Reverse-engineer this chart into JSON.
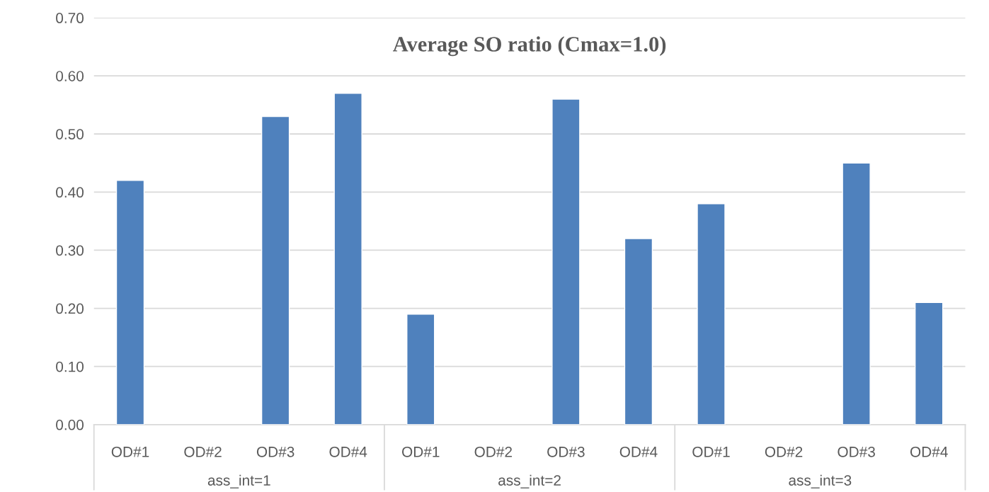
{
  "chart_data": {
    "type": "bar",
    "title": "Average SO ratio (Cmax=1.0)",
    "categories": [
      "OD#1",
      "OD#2",
      "OD#3",
      "OD#4",
      "OD#1",
      "OD#2",
      "OD#3",
      "OD#4",
      "OD#1",
      "OD#2",
      "OD#3",
      "OD#4"
    ],
    "values": [
      0.42,
      null,
      0.53,
      0.57,
      0.19,
      null,
      0.56,
      0.32,
      0.38,
      null,
      0.45,
      0.21
    ],
    "color": "#4f81bd",
    "annotations": [
      "ass_int=1",
      "ass_int=2",
      "ass_int=3"
    ],
    "ylim": [
      0,
      0.7
    ],
    "yticks": [
      {
        "value": 0,
        "label": "0.00"
      },
      {
        "value": 0.1,
        "label": "0.10"
      },
      {
        "value": 0.2,
        "label": "0.20"
      },
      {
        "value": 0.3,
        "label": "0.30"
      },
      {
        "value": 0.4,
        "label": "0.40"
      },
      {
        "value": 0.5,
        "label": "0.50"
      },
      {
        "value": 0.6,
        "label": "0.60"
      },
      {
        "value": 0.7,
        "label": "0.70"
      }
    ],
    "grid": "y",
    "legend": false
  }
}
